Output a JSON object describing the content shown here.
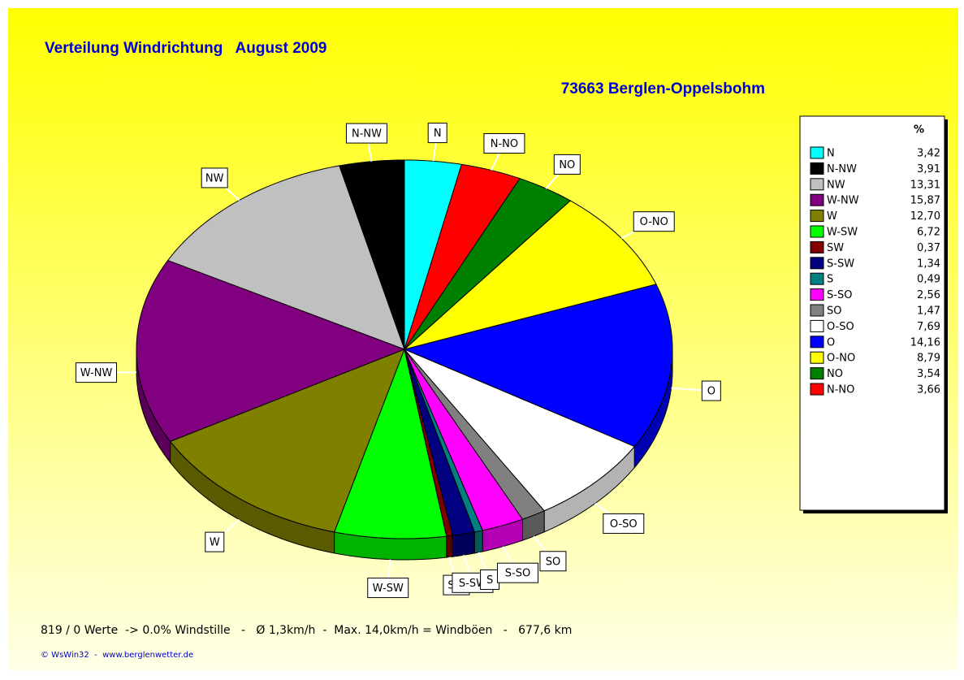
{
  "chart_data": {
    "type": "pie3d",
    "title": "Verteilung Windrichtung   August 2009",
    "subtitle": "73663 Berglen-Oppelsbohm",
    "legend_header": "%",
    "categories": [
      "N",
      "N-NW",
      "NW",
      "W-NW",
      "W",
      "W-SW",
      "SW",
      "S-SW",
      "S",
      "S-SO",
      "SO",
      "O-SO",
      "O",
      "O-NO",
      "NO",
      "N-NO"
    ],
    "values": [
      3.42,
      3.91,
      13.31,
      15.87,
      12.7,
      6.72,
      0.37,
      1.34,
      0.49,
      2.56,
      1.47,
      7.69,
      14.16,
      8.79,
      3.54,
      3.66
    ],
    "value_labels": [
      "3,42",
      "3,91",
      "13,31",
      "15,87",
      "12,70",
      "6,72",
      "0,37",
      "1,34",
      "0,49",
      "2,56",
      "1,47",
      "7,69",
      "14,16",
      "8,79",
      "3,54",
      "3,66"
    ],
    "colors": [
      "#00ffff",
      "#000000",
      "#c0c0c0",
      "#800080",
      "#808000",
      "#00ff00",
      "#800000",
      "#000080",
      "#008080",
      "#ff00ff",
      "#808080",
      "#ffffff",
      "#0000ff",
      "#ffff00",
      "#008000",
      "#ff0000"
    ],
    "direction": "counterclockwise",
    "legend": "right",
    "footer": "819 / 0 Werte  -> 0.0% Windstille   -   Ø 1,3km/h  -  Max. 14,0km/h = Windböen   -   677,6 km",
    "credit": "© WsWin32  -  www.berglenwetter.de"
  }
}
